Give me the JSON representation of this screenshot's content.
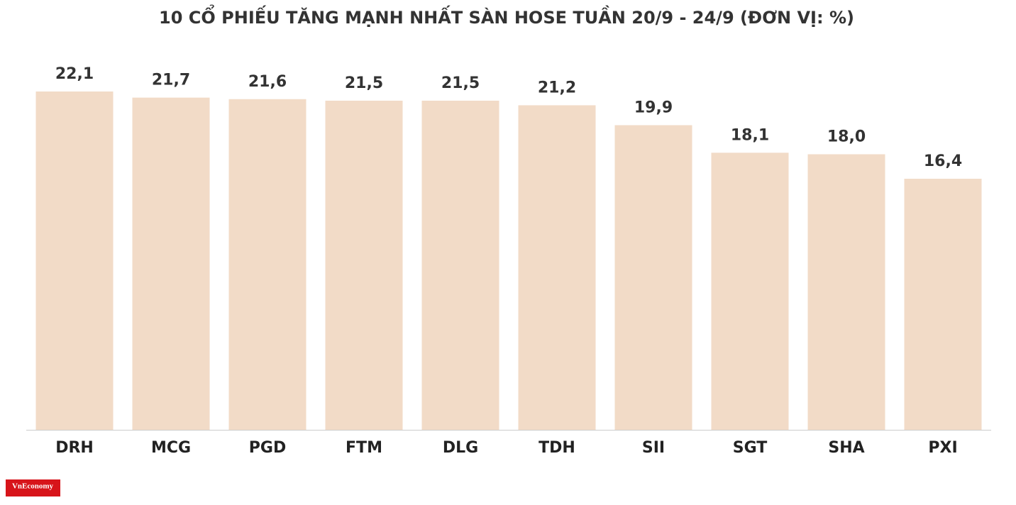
{
  "chart_data": {
    "type": "bar",
    "title": "10 CỔ PHIẾU TĂNG MẠNH NHẤT SÀN HOSE TUẦN 20/9 - 24/9 (ĐƠN VỊ: %)",
    "categories": [
      "DRH",
      "MCG",
      "PGD",
      "FTM",
      "DLG",
      "TDH",
      "SII",
      "SGT",
      "SHA",
      "PXI"
    ],
    "values": [
      22.1,
      21.7,
      21.6,
      21.5,
      21.5,
      21.2,
      19.9,
      18.1,
      18.0,
      16.4
    ],
    "value_labels": [
      "22,1",
      "21,7",
      "21,6",
      "21,5",
      "21,5",
      "21,2",
      "19,9",
      "18,1",
      "18,0",
      "16,4"
    ],
    "color": "#f2dbc7"
  },
  "logo": "VnEconomy"
}
